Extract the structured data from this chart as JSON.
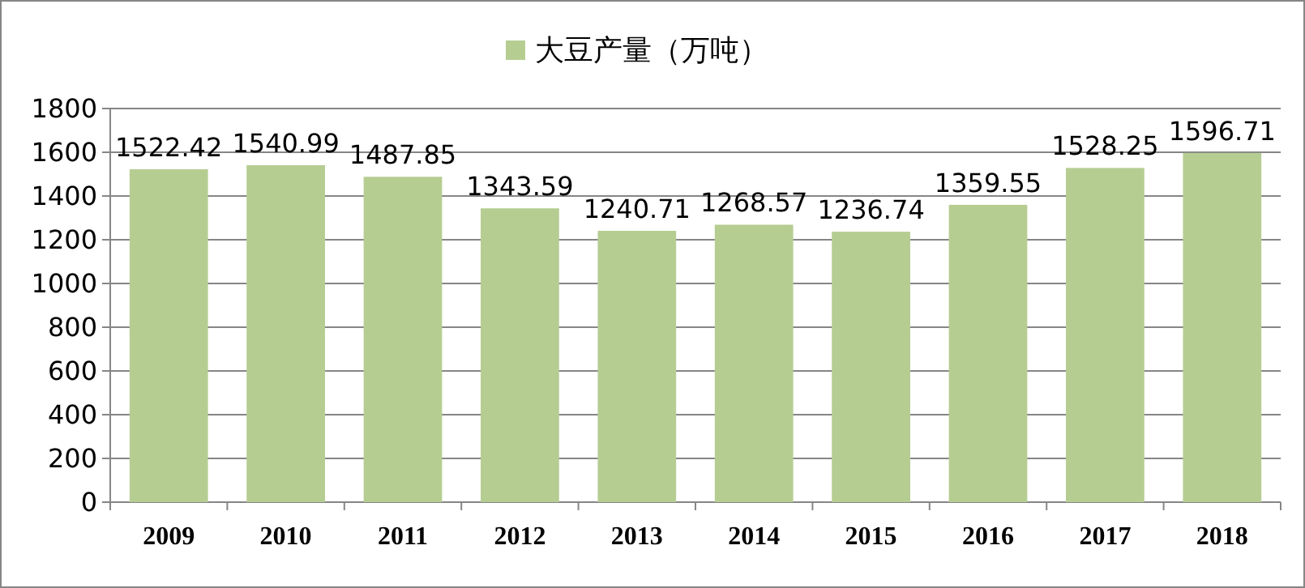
{
  "chart_data": {
    "type": "bar",
    "categories": [
      "2009",
      "2010",
      "2011",
      "2012",
      "2013",
      "2014",
      "2015",
      "2016",
      "2017",
      "2018"
    ],
    "series": [
      {
        "name": "大豆产量（万吨）",
        "color": "#b6cd92",
        "values": [
          1522.42,
          1540.99,
          1487.85,
          1343.59,
          1240.71,
          1268.57,
          1236.74,
          1359.55,
          1528.25,
          1596.71
        ]
      }
    ],
    "ylim": [
      0,
      1800
    ],
    "yticks": [
      0,
      200,
      400,
      600,
      800,
      1000,
      1200,
      1400,
      1600,
      1800
    ],
    "grid": "y",
    "legend": "top",
    "data_labels": true
  }
}
